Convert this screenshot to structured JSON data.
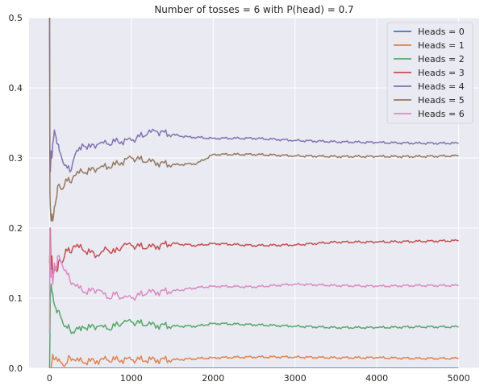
{
  "chart_data": {
    "type": "line",
    "title": "Number of tosses = 6 with P(head) = 0.7",
    "xlabel": "",
    "ylabel": "",
    "xlim": [
      -250,
      5250
    ],
    "ylim": [
      0,
      0.5
    ],
    "xticks": [
      0,
      1000,
      2000,
      3000,
      4000,
      5000
    ],
    "xtick_labels": [
      "0",
      "1000",
      "2000",
      "3000",
      "4000",
      "5000"
    ],
    "yticks": [
      0.0,
      0.1,
      0.2,
      0.3,
      0.4,
      0.5
    ],
    "ytick_labels": [
      "0.0",
      "0.1",
      "0.2",
      "0.3",
      "0.4",
      "0.5"
    ],
    "grid": true,
    "legend_position": "top-right",
    "series": [
      {
        "name": "Heads = 0",
        "color": "#4c72b0",
        "x": [
          1,
          50,
          200,
          500,
          1000,
          2000,
          3000,
          4000,
          5000
        ],
        "y": [
          0,
          0,
          0,
          0,
          0,
          0,
          0,
          0,
          0
        ]
      },
      {
        "name": "Heads = 1",
        "color": "#dd8452",
        "x": [
          1,
          20,
          40,
          60,
          100,
          150,
          200,
          250,
          300,
          400,
          500,
          700,
          1000,
          1500,
          2000,
          2500,
          3000,
          3500,
          4000,
          4500,
          5000
        ],
        "y": [
          0,
          0,
          0.02,
          0.012,
          0.01,
          0.008,
          0.006,
          0.016,
          0.012,
          0.009,
          0.01,
          0.012,
          0.012,
          0.012,
          0.015,
          0.016,
          0.016,
          0.015,
          0.015,
          0.014,
          0.014
        ]
      },
      {
        "name": "Heads = 2",
        "color": "#55a868",
        "x": [
          1,
          10,
          20,
          30,
          50,
          80,
          100,
          150,
          200,
          250,
          300,
          350,
          400,
          500,
          600,
          700,
          800,
          900,
          1000,
          1200,
          1500,
          1800,
          2000,
          2500,
          3000,
          3500,
          4000,
          4500,
          5000
        ],
        "y": [
          0,
          0.1,
          0.12,
          0.11,
          0.095,
          0.085,
          0.082,
          0.07,
          0.06,
          0.055,
          0.05,
          0.056,
          0.06,
          0.058,
          0.06,
          0.056,
          0.06,
          0.065,
          0.066,
          0.062,
          0.06,
          0.06,
          0.064,
          0.062,
          0.06,
          0.058,
          0.058,
          0.059,
          0.059
        ]
      },
      {
        "name": "Heads = 3",
        "color": "#c44e52",
        "x": [
          1,
          10,
          20,
          30,
          40,
          60,
          80,
          100,
          120,
          150,
          200,
          250,
          300,
          400,
          500,
          600,
          700,
          800,
          900,
          1000,
          1200,
          1500,
          1800,
          2000,
          2500,
          3000,
          3500,
          4000,
          4500,
          5000
        ],
        "y": [
          0.15,
          0.2,
          0.13,
          0.16,
          0.135,
          0.14,
          0.145,
          0.14,
          0.155,
          0.15,
          0.17,
          0.165,
          0.175,
          0.17,
          0.165,
          0.16,
          0.17,
          0.165,
          0.175,
          0.175,
          0.172,
          0.178,
          0.175,
          0.178,
          0.175,
          0.176,
          0.18,
          0.18,
          0.181,
          0.182
        ]
      },
      {
        "name": "Heads = 4",
        "color": "#8172b3",
        "x": [
          1,
          5,
          10,
          20,
          30,
          40,
          60,
          80,
          100,
          120,
          150,
          200,
          250,
          300,
          350,
          400,
          500,
          600,
          700,
          800,
          1000,
          1200,
          1300,
          1500,
          1700,
          2000,
          2500,
          3000,
          3500,
          4000,
          4500,
          5000
        ],
        "y": [
          0.5,
          0.3,
          0.28,
          0.31,
          0.3,
          0.32,
          0.34,
          0.33,
          0.32,
          0.31,
          0.3,
          0.29,
          0.28,
          0.3,
          0.31,
          0.32,
          0.315,
          0.32,
          0.32,
          0.323,
          0.325,
          0.335,
          0.338,
          0.333,
          0.33,
          0.328,
          0.328,
          0.325,
          0.323,
          0.322,
          0.321,
          0.321
        ]
      },
      {
        "name": "Heads = 5",
        "color": "#937860",
        "x": [
          1,
          5,
          10,
          20,
          30,
          40,
          60,
          80,
          100,
          150,
          200,
          250,
          300,
          400,
          500,
          600,
          800,
          1000,
          1200,
          1500,
          1800,
          2000,
          2500,
          3000,
          3500,
          4000,
          4500,
          5000
        ],
        "y": [
          0.5,
          0.25,
          0.23,
          0.21,
          0.22,
          0.21,
          0.23,
          0.24,
          0.26,
          0.255,
          0.27,
          0.265,
          0.275,
          0.28,
          0.282,
          0.285,
          0.29,
          0.3,
          0.295,
          0.29,
          0.292,
          0.305,
          0.305,
          0.303,
          0.302,
          0.302,
          0.302,
          0.303
        ]
      },
      {
        "name": "Heads = 6",
        "color": "#da8bc3",
        "x": [
          1,
          5,
          10,
          20,
          30,
          40,
          60,
          80,
          100,
          150,
          200,
          250,
          300,
          400,
          500,
          600,
          700,
          800,
          900,
          1000,
          1200,
          1500,
          1800,
          2000,
          2500,
          3000,
          3500,
          4000,
          4500,
          5000
        ],
        "y": [
          0.05,
          0.2,
          0.15,
          0.13,
          0.14,
          0.12,
          0.15,
          0.14,
          0.16,
          0.15,
          0.14,
          0.125,
          0.12,
          0.11,
          0.11,
          0.112,
          0.1,
          0.105,
          0.1,
          0.1,
          0.108,
          0.11,
          0.115,
          0.117,
          0.116,
          0.12,
          0.118,
          0.117,
          0.118,
          0.118
        ]
      }
    ]
  }
}
